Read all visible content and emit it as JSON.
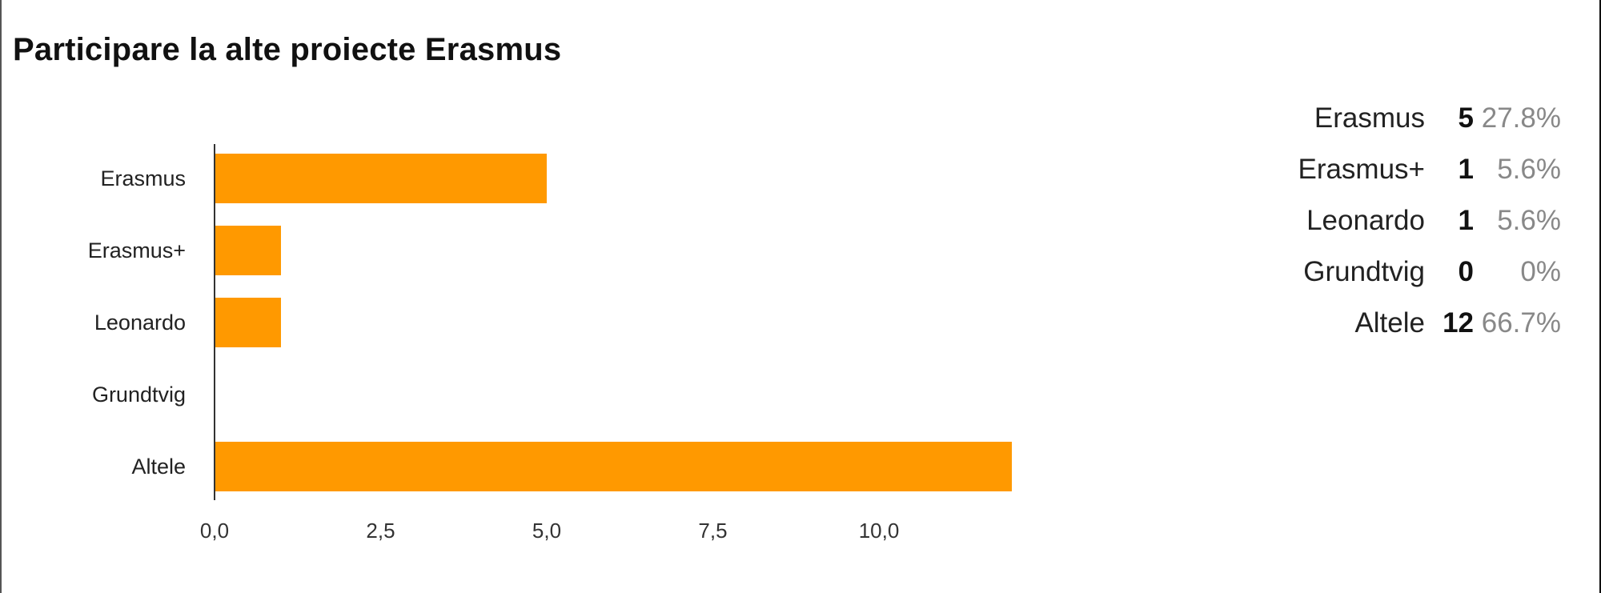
{
  "title": "Participare la alte proiecte Erasmus",
  "chart_data": {
    "type": "bar",
    "orientation": "horizontal",
    "title": "Participare la alte proiecte Erasmus",
    "categories": [
      "Erasmus",
      "Erasmus+",
      "Leonardo",
      "Grundtvig",
      "Altele"
    ],
    "values": [
      5,
      1,
      1,
      0,
      12
    ],
    "xlim": [
      0,
      12
    ],
    "xticks": [
      "0,0",
      "2,5",
      "5,0",
      "7,5",
      "10,0"
    ],
    "xtick_values": [
      0,
      2.5,
      5,
      7.5,
      10
    ],
    "bar_color": "#ff9900",
    "grid": false
  },
  "stats": [
    {
      "label": "Erasmus",
      "count": "5",
      "percent": "27.8%"
    },
    {
      "label": "Erasmus+",
      "count": "1",
      "percent": "5.6%"
    },
    {
      "label": "Leonardo",
      "count": "1",
      "percent": "5.6%"
    },
    {
      "label": "Grundtvig",
      "count": "0",
      "percent": "0%"
    },
    {
      "label": "Altele",
      "count": "12",
      "percent": "66.7%"
    }
  ]
}
